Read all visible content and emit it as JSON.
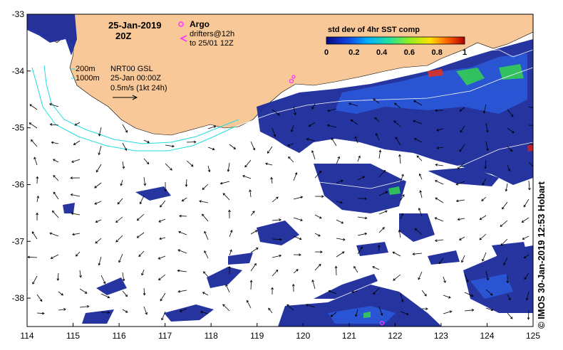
{
  "map": {
    "date_main": "25-Jan-2019",
    "date_hour": "20Z",
    "legend_argo": "Argo",
    "legend_drifters_line1": "drifters@12h",
    "legend_drifters_line2": "to 25/01 12Z",
    "contour_200": "200m",
    "contour_1000": "1000m",
    "product": "NRT00 GSL",
    "product_time": "25-Jan 00:00Z",
    "vector_scale": "0.5m/s (1kt 24h)",
    "colorbar_title": "std dev of 4hr SST comp",
    "colorbar_ticks": [
      "0",
      "0.2",
      "0.4",
      "0.6",
      "0.8",
      "1"
    ],
    "credit": "© IMOS 30-Jan-2019 12:53 Hobart",
    "lon_ticks": [
      "114",
      "115",
      "116",
      "117",
      "118",
      "119",
      "120",
      "121",
      "122",
      "123",
      "124",
      "125"
    ],
    "lat_ticks": [
      "-33",
      "-34",
      "-35",
      "-36",
      "-37",
      "-38"
    ],
    "lon_range": [
      114,
      125
    ],
    "lat_range": [
      -38.5,
      -33
    ],
    "colors": {
      "land": "#f8c898",
      "data_low": "#1a2a9a",
      "data_mid": "#2255dd",
      "data_high": "#33cc55",
      "contour": "#22dddd",
      "argo": "#ff33ff"
    }
  }
}
